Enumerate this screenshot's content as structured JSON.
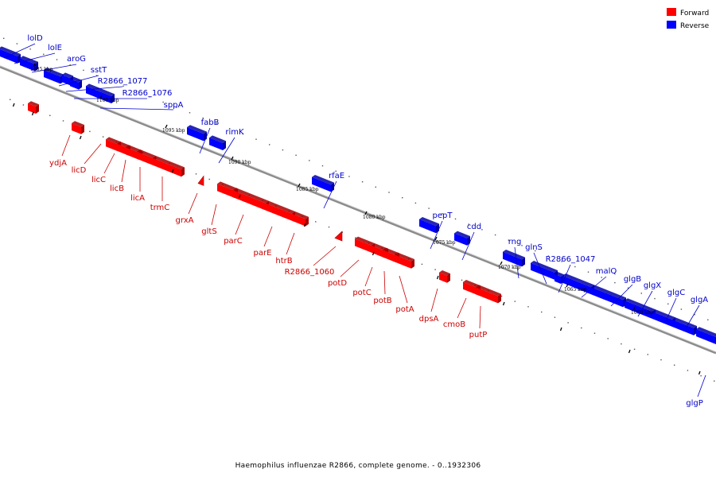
{
  "legend": {
    "forward_label": "Forward",
    "reverse_label": "Reverse",
    "forward_color": "#ff0000",
    "reverse_color": "#0000ff"
  },
  "caption": "Haemophilus influenzae R2866, complete genome. - 0..1932306",
  "colors": {
    "forward": "#ff0000",
    "forward_dark": "#a80000",
    "forward_label": "#cc0000",
    "reverse": "#0000ff",
    "reverse_dark": "#0000a8",
    "reverse_label": "#0000cc",
    "backbone": "#8c8c8c"
  },
  "scale_labels": [
    "1105 kbp",
    "1100 kbp",
    "1095 kbp",
    "1090 kbp",
    "1085 kbp",
    "1080 kbp",
    "1075 kbp",
    "1070 kbp",
    "1065 kbp",
    "1060 kbp"
  ],
  "reverse_genes": [
    "lolD",
    "lolE",
    "aroG",
    "sstT",
    "R2866_1077",
    "R2866_1076",
    "sppA",
    "fabB",
    "rimK",
    "rfaE",
    "pepT",
    "cdd",
    "rng",
    "glnS",
    "R2866_1047",
    "malQ",
    "glgB",
    "glgX",
    "glgC",
    "glgA",
    "glgP"
  ],
  "forward_genes": [
    "ydjA",
    "licD",
    "licC",
    "licB",
    "licA",
    "trmC",
    "grxA",
    "gltS",
    "parC",
    "parE",
    "htrB",
    "R2866_1060",
    "potD",
    "potC",
    "potB",
    "potA",
    "dpsA",
    "cmoB",
    "putP"
  ]
}
